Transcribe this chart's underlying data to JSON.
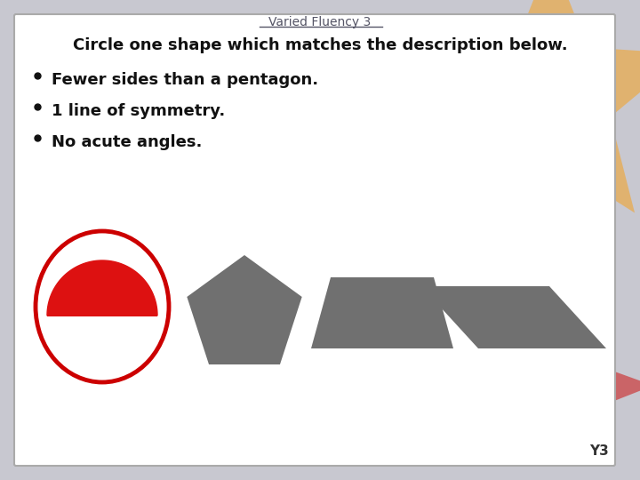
{
  "title": "Varied Fluency 3",
  "instruction": "Circle one shape which matches the description below.",
  "bullets": [
    "Fewer sides than a pentagon.",
    "1 line of symmetry.",
    "No acute angles."
  ],
  "bg_color": "#ffffff",
  "border_color": "#aaaaaa",
  "text_color": "#111111",
  "title_color": "#555566",
  "shape_gray": "#707070",
  "semicircle_color": "#dd1111",
  "circle_outline_color": "#cc0000",
  "y3_label": "Y3",
  "outer_bg": "#c8c8d0",
  "star_orange": "#f5a020",
  "star_red": "#cc2222"
}
